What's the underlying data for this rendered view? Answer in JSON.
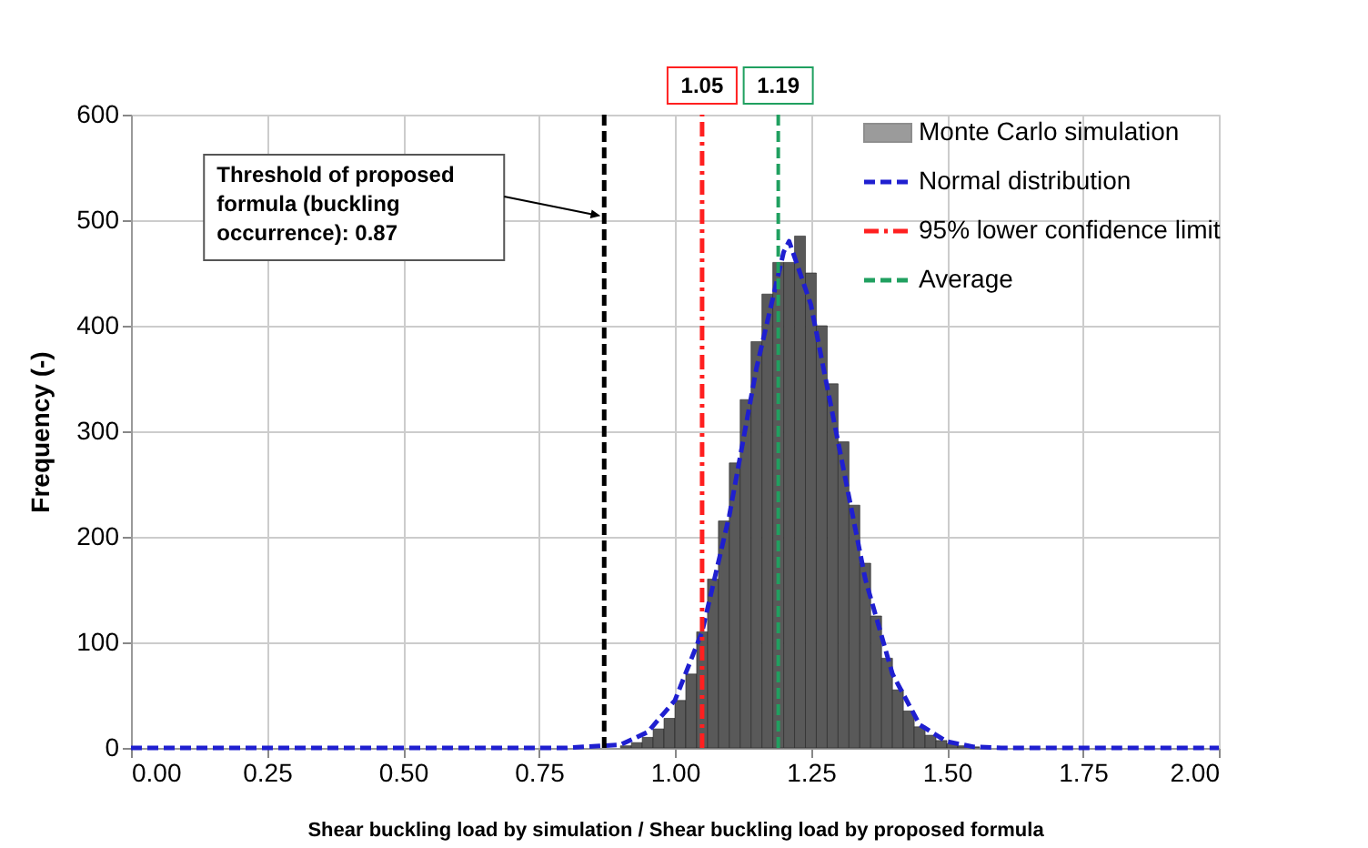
{
  "chart_data": {
    "type": "histogram",
    "xlabel": "Shear buckling load by simulation / Shear buckling load by proposed formula",
    "ylabel": "Frequency (-)",
    "xlim": [
      0,
      2
    ],
    "ylim": [
      0,
      600
    ],
    "xticks": [
      {
        "value": 0,
        "label": "0.00"
      },
      {
        "value": 0.25,
        "label": "0.25"
      },
      {
        "value": 0.5,
        "label": "0.50"
      },
      {
        "value": 0.75,
        "label": "0.75"
      },
      {
        "value": 1,
        "label": "1.00"
      },
      {
        "value": 1.25,
        "label": "1.25"
      },
      {
        "value": 1.5,
        "label": "1.50"
      },
      {
        "value": 1.75,
        "label": "1.75"
      },
      {
        "value": 2,
        "label": "2.00"
      }
    ],
    "yticks": [
      0,
      100,
      200,
      300,
      400,
      500,
      600
    ],
    "grid": true,
    "legend": "top right",
    "series": [
      {
        "name": "Monte Carlo simulation",
        "type": "histogram",
        "color": "#595959",
        "bins": [
          0.9,
          0.92,
          0.94,
          0.96,
          0.98,
          1.0,
          1.02,
          1.04,
          1.06,
          1.08,
          1.1,
          1.12,
          1.14,
          1.16,
          1.18,
          1.2,
          1.22,
          1.24,
          1.26,
          1.28,
          1.3,
          1.32,
          1.34,
          1.36,
          1.38,
          1.4,
          1.42,
          1.44,
          1.46,
          1.48,
          1.5,
          1.52,
          1.54,
          1.56
        ],
        "values": [
          2,
          5,
          10,
          18,
          28,
          45,
          70,
          110,
          160,
          215,
          270,
          330,
          385,
          430,
          460,
          460,
          485,
          450,
          400,
          345,
          290,
          230,
          175,
          125,
          85,
          55,
          35,
          20,
          12,
          7,
          4,
          2,
          1
        ]
      },
      {
        "name": "Normal distribution",
        "type": "line",
        "color": "#1f1fd0",
        "line_style": "dashed",
        "x": [
          0,
          0.8,
          0.9,
          0.95,
          1.0,
          1.05,
          1.1,
          1.15,
          1.2,
          1.21,
          1.25,
          1.3,
          1.35,
          1.4,
          1.45,
          1.5,
          1.55,
          1.6,
          2.0
        ],
        "values": [
          0,
          0,
          3,
          15,
          45,
          110,
          220,
          360,
          470,
          480,
          420,
          290,
          160,
          70,
          22,
          6,
          1,
          0,
          0
        ]
      },
      {
        "name": "95% lower confidence limit",
        "type": "line",
        "color": "#ff2020",
        "line_style": "dashdot",
        "x": [
          1.05,
          1.05
        ],
        "values": [
          0,
          600
        ]
      },
      {
        "name": "Average",
        "type": "line",
        "color": "#20a060",
        "line_style": "dashed",
        "x": [
          1.19,
          1.19
        ],
        "values": [
          0,
          600
        ]
      }
    ],
    "ref_lines": [
      {
        "axis": "x",
        "value": 0.87,
        "color": "#000000",
        "line_style": "dashed"
      }
    ],
    "annotations": [
      "Threshold of proposed formula (buckling occurrence): 0.87",
      {
        "text": "1.05",
        "x": 1.05,
        "y": 600
      },
      {
        "text": "1.19",
        "x": 1.19,
        "y": 600
      }
    ]
  }
}
